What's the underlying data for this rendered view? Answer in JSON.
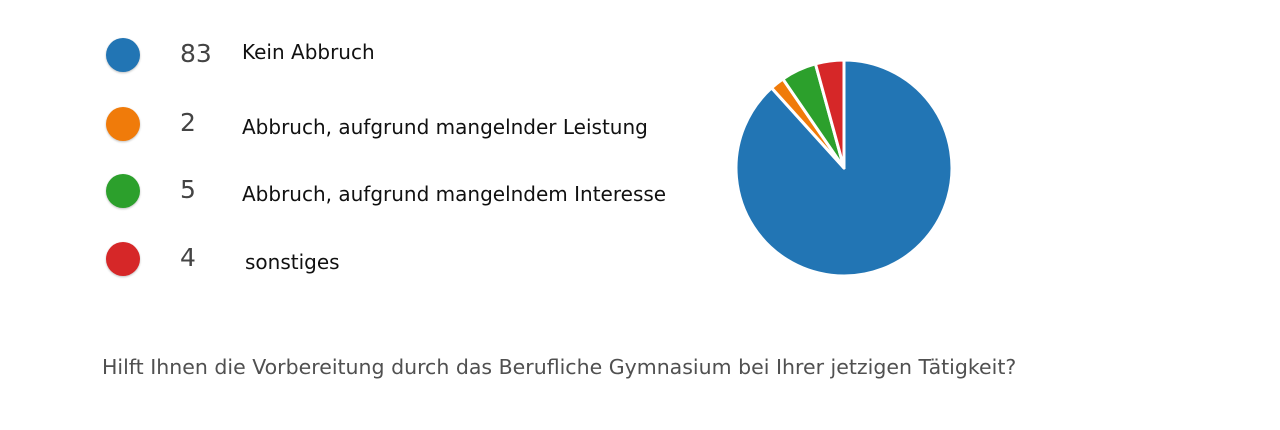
{
  "chart_data": {
    "type": "pie",
    "categories": [
      "Kein Abbruch",
      "Abbruch, aufgrund mangelnder Leistung",
      "Abbruch, aufgrund mangelndem Interesse",
      "sonstiges"
    ],
    "values": [
      83,
      2,
      5,
      4
    ],
    "colors": [
      "#2275B4",
      "#F07B0A",
      "#2CA02C",
      "#D62728"
    ],
    "legend": "left",
    "start": "top",
    "direction": "clockwise"
  },
  "legend": {
    "items": [
      {
        "count": "83",
        "label": "Kein Abbruch",
        "color": "#2275B4"
      },
      {
        "count": "2",
        "label": "Abbruch, aufgrund mangelnder Leistung",
        "color": "#F07B0A"
      },
      {
        "count": "5",
        "label": "Abbruch, aufgrund mangelndem Interesse",
        "color": "#2CA02C"
      },
      {
        "count": "4",
        "label": "sonstiges",
        "color": "#D62728"
      }
    ]
  },
  "question": "Hilft Ihnen die Vorbereitung durch das Berufliche Gymnasium bei Ihrer jetzigen Tätigkeit?"
}
